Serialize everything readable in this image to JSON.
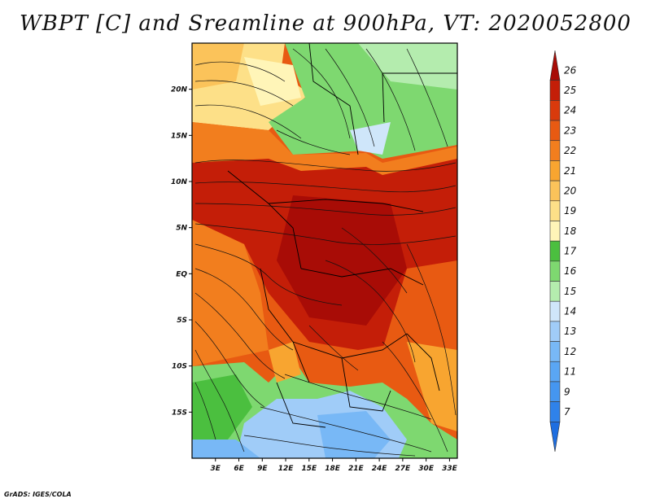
{
  "title": "WBPT [C] and Sreamline at 900hPa, VT: 2020052800",
  "credit": "GrADS: IGES/COLA",
  "map": {
    "lon_labels": [
      "3E",
      "6E",
      "9E",
      "12E",
      "15E",
      "18E",
      "21E",
      "24E",
      "27E",
      "30E",
      "33E"
    ],
    "lon_values": [
      3,
      6,
      9,
      12,
      15,
      18,
      21,
      24,
      27,
      30,
      33
    ],
    "lon_range": [
      0,
      34
    ],
    "lat_labels": [
      "20N",
      "15N",
      "10N",
      "5N",
      "EQ",
      "5S",
      "10S",
      "15S"
    ],
    "lat_values": [
      20,
      15,
      10,
      5,
      0,
      -5,
      -10,
      -15
    ],
    "lat_range": [
      -20,
      25
    ]
  },
  "colorbar": {
    "labels": [
      "7",
      "9",
      "11",
      "12",
      "13",
      "14",
      "15",
      "16",
      "17",
      "18",
      "19",
      "20",
      "21",
      "22",
      "23",
      "24",
      "25",
      "26"
    ],
    "colors": [
      "#1e6ee0",
      "#2f82ea",
      "#4596f0",
      "#5aa6f4",
      "#78b8f6",
      "#a0ccf8",
      "#cfe6fa",
      "#b4ecae",
      "#7ed870",
      "#4bbf3f",
      "#fff5b8",
      "#fde088",
      "#fbc35a",
      "#f8a530",
      "#f27e1e",
      "#e85a12",
      "#d93a0c",
      "#c41e08",
      "#a80c06"
    ]
  }
}
